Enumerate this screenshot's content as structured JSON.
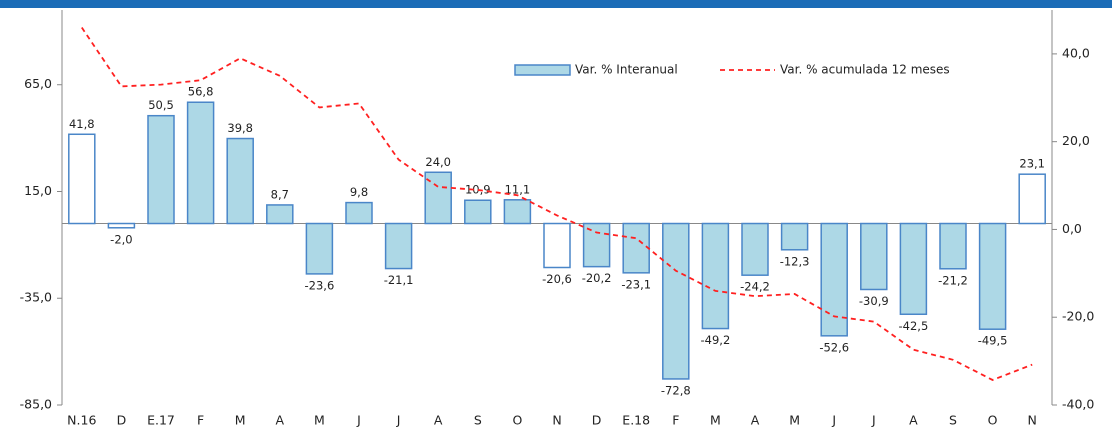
{
  "chart_data": {
    "type": "bar",
    "categories": [
      "N.16",
      "D",
      "E.17",
      "F",
      "M",
      "A",
      "M",
      "J",
      "J",
      "A",
      "S",
      "O",
      "N",
      "D",
      "E.18",
      "F",
      "M",
      "A",
      "M",
      "J",
      "J",
      "A",
      "S",
      "O",
      "N"
    ],
    "series": [
      {
        "name": "Var. % Interanual",
        "type": "bar",
        "color": "#add8e6",
        "colors": [
          "#ffffff",
          "#ffffff",
          "#add8e6",
          "#add8e6",
          "#add8e6",
          "#add8e6",
          "#add8e6",
          "#add8e6",
          "#add8e6",
          "#add8e6",
          "#add8e6",
          "#add8e6",
          "#ffffff",
          "#add8e6",
          "#add8e6",
          "#add8e6",
          "#add8e6",
          "#add8e6",
          "#add8e6",
          "#add8e6",
          "#add8e6",
          "#add8e6",
          "#add8e6",
          "#add8e6",
          "#ffffff"
        ],
        "values": [
          41.8,
          -2.0,
          50.5,
          56.8,
          39.8,
          8.7,
          -23.6,
          9.8,
          -21.1,
          24.0,
          10.9,
          11.1,
          -20.6,
          -20.2,
          -23.1,
          -72.8,
          -49.2,
          -24.2,
          -12.3,
          -52.6,
          -30.9,
          -42.5,
          -21.2,
          -49.5,
          23.1
        ],
        "value_labels": [
          "41,8",
          "-2,0",
          "50,5",
          "56,8",
          "39,8",
          "8,7",
          "-23,6",
          "9,8",
          "-21,1",
          "24,0",
          "10,9",
          "11,1",
          "-20,6",
          "-20,2",
          "-23,1",
          "-72,8",
          "-49,2",
          "-24,2",
          "-12,3",
          "-52,6",
          "-30,9",
          "-42,5",
          "-21,2",
          "-49,5",
          "23,1"
        ]
      },
      {
        "name": "Var. % acumulada 12 meses",
        "type": "line",
        "axis": "y2",
        "color": "#ff2020",
        "values": [
          46,
          32.6,
          33,
          34,
          39,
          35,
          27.8,
          28.7,
          15.9,
          9.7,
          9,
          7.8,
          3.2,
          -0.7,
          -2,
          -9.4,
          -14,
          -15.2,
          -14.7,
          -19.8,
          -21,
          -27.4,
          -29.7,
          -34.3,
          -30.8
        ]
      }
    ],
    "ylim": [
      -85,
      100
    ],
    "yticks": [
      {
        "value": 65,
        "label": "65,0"
      },
      {
        "value": 15,
        "label": "15,0"
      },
      {
        "value": -35,
        "label": "-35,0"
      },
      {
        "value": -85,
        "label": "-85,0"
      }
    ],
    "y2lim": [
      -40,
      50
    ],
    "y2ticks": [
      {
        "value": 40,
        "label": "40,0"
      },
      {
        "value": 20,
        "label": "20,0"
      },
      {
        "value": 0,
        "label": "0,0"
      },
      {
        "value": -20,
        "label": "-20,0"
      },
      {
        "value": -40,
        "label": "-40,0"
      }
    ],
    "legend": "top-right"
  }
}
